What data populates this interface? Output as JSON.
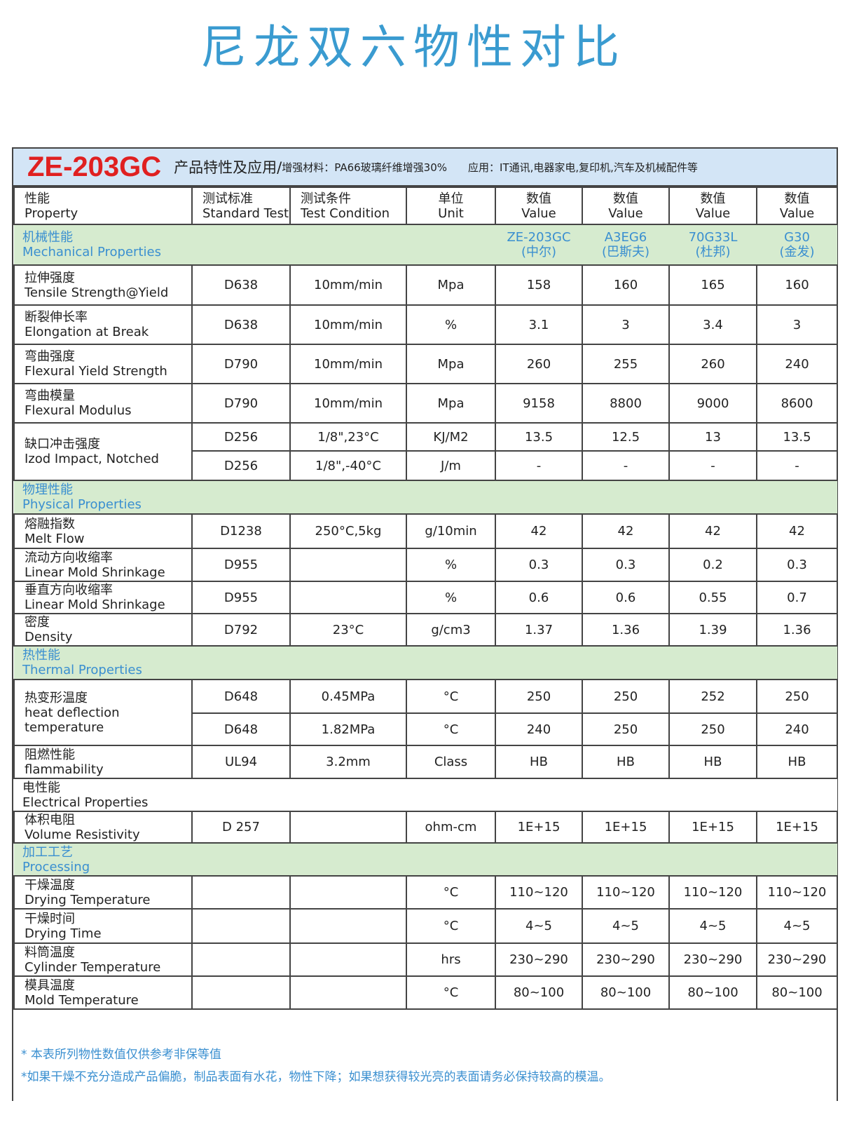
{
  "title": "尼龙双六物性对比",
  "banner": {
    "code": "ZE-203GC",
    "heading": "产品特性及应用/",
    "material": "增强材料：PA66玻璃纤维增强30%",
    "application": "应用：IT通讯,电器家电,复印机,汽车及机械配件等"
  },
  "header": [
    [
      "性能",
      "Property"
    ],
    [
      "测试标准",
      "Standard Test"
    ],
    [
      "测试条件",
      "Test Condition"
    ],
    [
      "单位",
      "Unit"
    ],
    [
      "数值",
      "Value"
    ],
    [
      "数值",
      "Value"
    ],
    [
      "数值",
      "Value"
    ],
    [
      "数值",
      "Value"
    ]
  ],
  "colors": {
    "accent": "#3a9bd0",
    "brand_red": "#e02020",
    "section_green": "#d6ebcf",
    "banner_blue": "#d3e5f6"
  },
  "rows": [
    {
      "type": "section",
      "cn": "机械性能",
      "en": "Mechanical Properties",
      "products": [
        [
          "ZE-203GC",
          "(中尔)"
        ],
        [
          "A3EG6",
          "(巴斯夫)"
        ],
        [
          "70G33L",
          "(杜邦)"
        ],
        [
          "G30",
          "(金发)"
        ]
      ]
    },
    {
      "type": "prop",
      "cn": "拉伸强度",
      "en": "Tensile Strength@Yield",
      "sub": [
        {
          "std": "D638",
          "cond": "10mm/min",
          "unit": "Mpa",
          "values": [
            "158",
            "160",
            "165",
            "160"
          ]
        }
      ]
    },
    {
      "type": "prop",
      "cn": "断裂伸长率",
      "en": "Elongation at Break",
      "sub": [
        {
          "std": "D638",
          "cond": "10mm/min",
          "unit": "%",
          "values": [
            "3.1",
            "3",
            "3.4",
            "3"
          ]
        }
      ]
    },
    {
      "type": "prop",
      "cn": "弯曲强度",
      "en": "Flexural Yield Strength",
      "sub": [
        {
          "std": "D790",
          "cond": "10mm/min",
          "unit": "Mpa",
          "values": [
            "260",
            "255",
            "260",
            "240"
          ]
        }
      ]
    },
    {
      "type": "prop",
      "cn": "弯曲模量",
      "en": "Flexural Modulus",
      "sub": [
        {
          "std": "D790",
          "cond": "10mm/min",
          "unit": "Mpa",
          "values": [
            "9158",
            "8800",
            "9000",
            "8600"
          ]
        }
      ]
    },
    {
      "type": "prop",
      "cn": "缺口冲击强度",
      "en": "Izod Impact, Notched",
      "sub": [
        {
          "std": "D256",
          "cond": "1/8\",23°C",
          "unit": "KJ/M2",
          "values": [
            "13.5",
            "12.5",
            "13",
            "13.5"
          ]
        },
        {
          "std": "D256",
          "cond": "1/8\",-40°C",
          "unit": "J/m",
          "values": [
            "-",
            "-",
            "-",
            "-"
          ]
        }
      ]
    },
    {
      "type": "section",
      "cn": "物理性能",
      "en": "Physical Properties"
    },
    {
      "type": "prop",
      "cn": "熔融指数",
      "en": "Melt Flow",
      "sub": [
        {
          "std": "D1238",
          "cond": "250°C,5kg",
          "unit": "g/10min",
          "values": [
            "42",
            "42",
            "42",
            "42"
          ]
        }
      ]
    },
    {
      "type": "prop",
      "cn": "流动方向收缩率",
      "en": "Linear Mold Shrinkage",
      "sub": [
        {
          "std": "D955",
          "cond": "",
          "unit": "%",
          "values": [
            "0.3",
            "0.3",
            "0.2",
            "0.3"
          ]
        }
      ]
    },
    {
      "type": "prop",
      "cn": "垂直方向收缩率",
      "en": "Linear Mold Shrinkage",
      "sub": [
        {
          "std": "D955",
          "cond": "",
          "unit": "%",
          "values": [
            "0.6",
            "0.6",
            "0.55",
            "0.7"
          ]
        }
      ]
    },
    {
      "type": "prop",
      "cn": "密度",
      "en": "Density",
      "sub": [
        {
          "std": "D792",
          "cond": "23°C",
          "unit": "g/cm3",
          "values": [
            "1.37",
            "1.36",
            "1.39",
            "1.36"
          ]
        }
      ]
    },
    {
      "type": "section",
      "cn": "热性能",
      "en": "Thermal Properties"
    },
    {
      "type": "prop",
      "cn": "热变形温度",
      "en": "heat deflection temperature",
      "sub": [
        {
          "std": "D648",
          "cond": "0.45MPa",
          "unit": "°C",
          "values": [
            "250",
            "250",
            "252",
            "250"
          ]
        },
        {
          "std": "D648",
          "cond": "1.82MPa",
          "unit": "°C",
          "values": [
            "240",
            "250",
            "250",
            "240"
          ]
        }
      ]
    },
    {
      "type": "prop",
      "cn": "阻燃性能",
      "en": "flammability",
      "sub": [
        {
          "std": "UL94",
          "cond": "3.2mm",
          "unit": "Class",
          "values": [
            "HB",
            "HB",
            "HB",
            "HB"
          ]
        }
      ]
    },
    {
      "type": "section",
      "white": true,
      "cn": "电性能",
      "en": "Electrical Properties"
    },
    {
      "type": "prop",
      "cn": "体积电阻",
      "en": "Volume Resistivity",
      "sub": [
        {
          "std": "D 257",
          "cond": "",
          "unit": "ohm-cm",
          "values": [
            "1E+15",
            "1E+15",
            "1E+15",
            "1E+15"
          ]
        }
      ]
    },
    {
      "type": "section",
      "cn": "加工工艺",
      "en": "Processing"
    },
    {
      "type": "prop",
      "cn": "干燥温度",
      "en": "Drying Temperature",
      "sub": [
        {
          "std": "",
          "cond": "",
          "unit": "°C",
          "values": [
            "110~120",
            "110~120",
            "110~120",
            "110~120"
          ]
        }
      ]
    },
    {
      "type": "prop",
      "cn": "干燥时间",
      "en": "Drying Time",
      "sub": [
        {
          "std": "",
          "cond": "",
          "unit": "°C",
          "values": [
            "4~5",
            "4~5",
            "4~5",
            "4~5"
          ]
        }
      ]
    },
    {
      "type": "prop",
      "cn": "料筒温度",
      "en": "Cylinder Temperature",
      "sub": [
        {
          "std": "",
          "cond": "",
          "unit": "hrs",
          "values": [
            "230~290",
            "230~290",
            "230~290",
            "230~290"
          ]
        }
      ]
    },
    {
      "type": "prop",
      "cn": "模具温度",
      "en": "Mold Temperature",
      "sub": [
        {
          "std": "",
          "cond": "",
          "unit": "°C",
          "values": [
            "80~100",
            "80~100",
            "80~100",
            "80~100"
          ]
        }
      ]
    }
  ],
  "notes": [
    "* 本表所列物性数值仅供参考非保等值",
    "*如果干燥不充分造成产品偏脆，制品表面有水花，物性下降；如果想获得较光亮的表面请务必保持较高的模温。"
  ]
}
